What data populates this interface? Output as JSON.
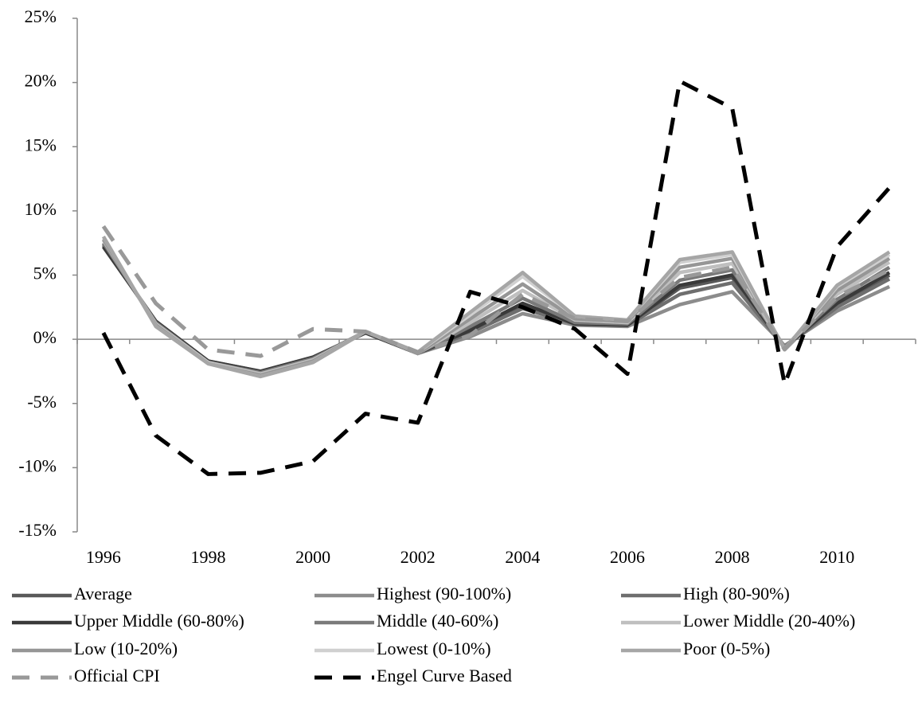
{
  "chart_data": {
    "type": "line",
    "categories": [
      "1996",
      null,
      "1998",
      null,
      "2000",
      null,
      "2002",
      null,
      "2004",
      null,
      "2006",
      null,
      "2008",
      null,
      "2010",
      null
    ],
    "ylim": [
      -15,
      25
    ],
    "yticks": [
      {
        "value": -15,
        "label": "-15%"
      },
      {
        "value": -10,
        "label": "-10%"
      },
      {
        "value": -5,
        "label": "-5%"
      },
      {
        "value": 0,
        "label": "0%"
      },
      {
        "value": 5,
        "label": "5%"
      },
      {
        "value": 10,
        "label": "10%"
      },
      {
        "value": 15,
        "label": "15%"
      },
      {
        "value": 20,
        "label": "20%"
      },
      {
        "value": 25,
        "label": "25%"
      }
    ],
    "series": [
      {
        "name": "Average",
        "color": "#595959",
        "dashed": false,
        "values": [
          7.3,
          1.4,
          -1.7,
          -2.5,
          -1.4,
          0.5,
          -1.1,
          0.8,
          2.6,
          1.2,
          1.1,
          4.0,
          4.8,
          -0.6,
          2.7,
          5.0
        ]
      },
      {
        "name": "Highest (90-100%)",
        "color": "#8c8c8c",
        "dashed": false,
        "values": [
          7.5,
          1.2,
          -1.8,
          -2.7,
          -1.6,
          0.6,
          -1.1,
          0.2,
          2.0,
          1.1,
          1.0,
          2.7,
          3.7,
          -0.5,
          2.2,
          4.1
        ]
      },
      {
        "name": "High (80-90%)",
        "color": "#6e6e6e",
        "dashed": false,
        "values": [
          7.4,
          1.3,
          -1.8,
          -2.6,
          -1.5,
          0.6,
          -1.1,
          0.5,
          2.4,
          1.2,
          1.1,
          3.5,
          4.4,
          -0.6,
          2.5,
          4.7
        ]
      },
      {
        "name": "Upper Middle (60-80%)",
        "color": "#3a3a3a",
        "dashed": false,
        "values": [
          7.2,
          1.4,
          -1.7,
          -2.5,
          -1.4,
          0.5,
          -1.1,
          0.7,
          2.8,
          1.2,
          1.1,
          4.2,
          5.0,
          -0.6,
          2.8,
          5.2
        ]
      },
      {
        "name": "Middle (40-60%)",
        "color": "#7a7a7a",
        "dashed": false,
        "values": [
          7.5,
          1.3,
          -1.8,
          -2.6,
          -1.5,
          0.6,
          -1.1,
          1.0,
          3.2,
          1.3,
          1.2,
          4.6,
          5.4,
          -0.6,
          3.1,
          5.6
        ]
      },
      {
        "name": "Lower Middle (20-40%)",
        "color": "#bfbfbf",
        "dashed": false,
        "values": [
          7.7,
          1.2,
          -1.8,
          -2.7,
          -1.6,
          0.6,
          -1.1,
          1.3,
          3.8,
          1.5,
          1.3,
          5.2,
          5.9,
          -0.7,
          3.5,
          6.0
        ]
      },
      {
        "name": "Low (10-20%)",
        "color": "#969696",
        "dashed": false,
        "values": [
          7.8,
          1.1,
          -1.9,
          -2.8,
          -1.7,
          0.6,
          -1.1,
          1.6,
          4.3,
          1.6,
          1.4,
          5.6,
          6.3,
          -0.7,
          3.8,
          6.3
        ]
      },
      {
        "name": "Lowest (0-10%)",
        "color": "#d0d0d0",
        "dashed": false,
        "values": [
          8.0,
          1.0,
          -1.9,
          -2.9,
          -1.8,
          0.6,
          -1.0,
          1.9,
          4.9,
          1.8,
          1.5,
          6.0,
          6.6,
          -0.8,
          4.1,
          6.6
        ]
      },
      {
        "name": "Poor (0-5%)",
        "color": "#a6a6a6",
        "dashed": false,
        "values": [
          8.0,
          1.0,
          -1.9,
          -2.9,
          -1.8,
          0.6,
          -1.0,
          2.1,
          5.2,
          1.8,
          1.5,
          6.2,
          6.8,
          -0.8,
          4.2,
          6.8
        ]
      },
      {
        "name": "Official CPI",
        "color": "#999999",
        "dashed": true,
        "values": [
          8.8,
          2.8,
          -0.8,
          -1.3,
          0.8,
          0.6,
          -1.0,
          0.3,
          3.5,
          1.6,
          1.4,
          4.8,
          5.6,
          -0.8,
          3.3,
          5.4
        ]
      },
      {
        "name": "Engel Curve Based",
        "color": "#000000",
        "dashed": true,
        "values": [
          0.5,
          -7.5,
          -10.5,
          -10.4,
          -9.5,
          -5.8,
          -6.5,
          3.7,
          2.5,
          0.8,
          -2.7,
          20.1,
          18.0,
          -3.5,
          7.2,
          11.8
        ]
      }
    ]
  }
}
